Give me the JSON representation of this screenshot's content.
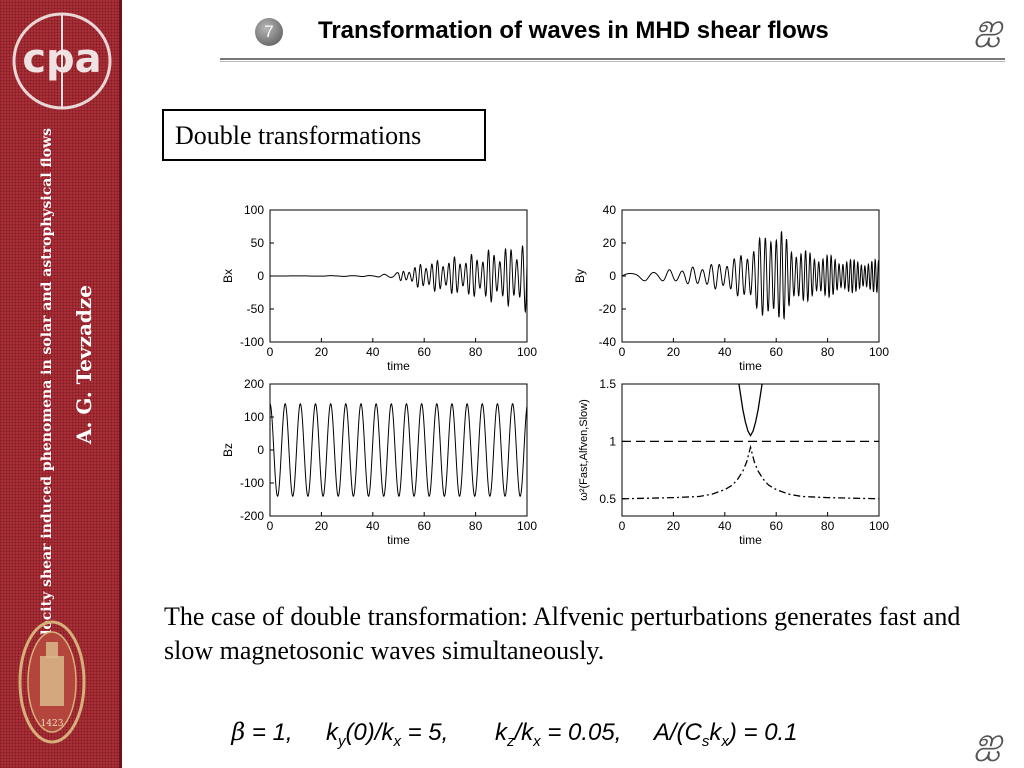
{
  "sidebar": {
    "logo_text": "cpa",
    "title_vertical": "Velocity shear induced phenomena in solar and astrophysical flows",
    "author_vertical": "A. G. Tevzadze",
    "seal_year": "1423"
  },
  "header": {
    "slide_number": "7",
    "title": "Transformation of waves in MHD shear flows",
    "nav_icon": "navigation-curl-icon"
  },
  "section_box": {
    "label": "Double transformations"
  },
  "caption": {
    "text": "The case of double transformation: Alfvenic perturbations generates fast and slow magnetosonic waves simultaneously."
  },
  "params": [
    {
      "main": "β",
      "rest": " = 1,"
    },
    {
      "parts": [
        "k",
        "y",
        "(0)/k",
        "x",
        " = 5,"
      ]
    },
    {
      "parts": [
        "k",
        "z",
        "/k",
        "x",
        " = 0.05,"
      ]
    },
    {
      "parts": [
        "A/(C",
        "s",
        "k",
        "x",
        ") = 0.1"
      ]
    }
  ],
  "colors": {
    "sidebar": "#a3212a",
    "sidebar_text": "#ffffff",
    "rule": "#777777"
  },
  "chart_data": [
    {
      "type": "line",
      "ylabel": "Bx",
      "xlabel": "time",
      "xlim": [
        0,
        100
      ],
      "ylim": [
        -100,
        100
      ],
      "xticks": [
        0,
        20,
        40,
        60,
        80,
        100
      ],
      "yticks": [
        100,
        50,
        0,
        -50,
        -100
      ],
      "series": [
        {
          "values_description_free": true,
          "x": [
            0,
            40,
            45,
            50,
            55,
            60,
            65,
            70,
            75,
            80,
            85,
            90,
            95,
            100
          ],
          "amplitude": [
            0,
            1,
            3,
            6,
            12,
            22,
            24,
            28,
            30,
            34,
            40,
            42,
            48,
            55
          ]
        }
      ]
    },
    {
      "type": "line",
      "ylabel": "By",
      "xlabel": "time",
      "xlim": [
        0,
        100
      ],
      "ylim": [
        -40,
        40
      ],
      "xticks": [
        0,
        20,
        40,
        60,
        80,
        100
      ],
      "yticks": [
        40,
        20,
        0,
        -20,
        -40
      ],
      "series": [
        {
          "x": [
            0,
            10,
            20,
            30,
            40,
            45,
            50,
            55,
            58,
            60,
            62,
            65,
            70,
            80,
            90,
            100
          ],
          "amplitude": [
            2,
            3,
            4,
            6,
            9,
            12,
            18,
            25,
            34,
            30,
            28,
            22,
            16,
            13,
            10,
            10
          ]
        }
      ]
    },
    {
      "type": "line",
      "ylabel": "Bz",
      "xlabel": "time",
      "xlim": [
        0,
        100
      ],
      "ylim": [
        -200,
        200
      ],
      "xticks": [
        0,
        20,
        40,
        60,
        80,
        100
      ],
      "yticks": [
        200,
        100,
        0,
        -100,
        -200
      ],
      "series": [
        {
          "amplitude": [
            140
          ],
          "period": [
            5.9
          ]
        }
      ]
    },
    {
      "type": "line",
      "ylabel": "ω²(Fast,Alfven,Slow)",
      "xlabel": "time",
      "xlim": [
        0,
        100
      ],
      "ylim": [
        0.35,
        1.5
      ],
      "xticks": [
        0,
        20,
        40,
        60,
        80,
        100
      ],
      "yticks": [
        1.5,
        1,
        0.5
      ],
      "ytick_labels": [
        "1.5",
        "1",
        "0.5"
      ],
      "series": [
        {
          "name": "",
          "style": "solid",
          "x": [
            45.5,
            47,
            48,
            49,
            50,
            51,
            52,
            53,
            54.5
          ],
          "values": [
            1.5,
            1.28,
            1.17,
            1.09,
            1.05,
            1.09,
            1.17,
            1.28,
            1.5
          ]
        },
        {
          "name": "",
          "style": "dashed",
          "x": [
            0,
            100
          ],
          "values": [
            1.0,
            1.0
          ]
        },
        {
          "name": "",
          "style": "dashdot",
          "x": [
            0,
            20,
            30,
            35,
            40,
            43,
            45,
            47,
            48.5,
            50,
            51.5,
            53,
            55,
            57,
            60,
            65,
            70,
            80,
            100
          ],
          "values": [
            0.5,
            0.51,
            0.52,
            0.54,
            0.58,
            0.62,
            0.67,
            0.74,
            0.82,
            0.95,
            0.82,
            0.74,
            0.67,
            0.62,
            0.58,
            0.54,
            0.52,
            0.51,
            0.5
          ]
        }
      ]
    }
  ]
}
